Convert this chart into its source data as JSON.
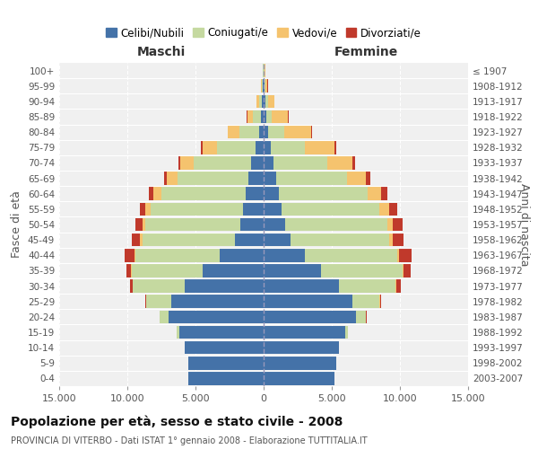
{
  "age_groups": [
    "0-4",
    "5-9",
    "10-14",
    "15-19",
    "20-24",
    "25-29",
    "30-34",
    "35-39",
    "40-44",
    "45-49",
    "50-54",
    "55-59",
    "60-64",
    "65-69",
    "70-74",
    "75-79",
    "80-84",
    "85-89",
    "90-94",
    "95-99",
    "100+"
  ],
  "birth_years": [
    "2003-2007",
    "1998-2002",
    "1993-1997",
    "1988-1992",
    "1983-1987",
    "1978-1982",
    "1973-1977",
    "1968-1972",
    "1963-1967",
    "1958-1962",
    "1953-1957",
    "1948-1952",
    "1943-1947",
    "1938-1942",
    "1933-1937",
    "1928-1932",
    "1923-1927",
    "1918-1922",
    "1913-1917",
    "1908-1912",
    "≤ 1907"
  ],
  "colors": {
    "celibi": "#4472a8",
    "coniugati": "#c5d9a0",
    "vedovi": "#f5c36e",
    "divorziati": "#c0392b"
  },
  "maschi": {
    "celibi": [
      5500,
      5500,
      5800,
      6200,
      7000,
      6800,
      5800,
      4500,
      3200,
      2100,
      1700,
      1500,
      1300,
      1100,
      900,
      600,
      300,
      200,
      150,
      80,
      30
    ],
    "coniugati": [
      0,
      0,
      0,
      200,
      600,
      1800,
      3800,
      5200,
      6200,
      6800,
      7000,
      6800,
      6200,
      5200,
      4200,
      2800,
      1500,
      600,
      200,
      80,
      40
    ],
    "vedovi": [
      0,
      0,
      0,
      0,
      5,
      10,
      30,
      50,
      100,
      150,
      200,
      400,
      600,
      800,
      1000,
      1100,
      800,
      400,
      150,
      50,
      20
    ],
    "divorziati": [
      0,
      0,
      0,
      10,
      30,
      80,
      200,
      300,
      700,
      600,
      500,
      400,
      300,
      200,
      150,
      100,
      50,
      30,
      20,
      10,
      5
    ]
  },
  "femmine": {
    "celibi": [
      5200,
      5300,
      5500,
      6000,
      6800,
      6500,
      5500,
      4200,
      3000,
      2000,
      1600,
      1300,
      1100,
      900,
      700,
      500,
      300,
      200,
      150,
      80,
      30
    ],
    "coniugati": [
      0,
      0,
      0,
      200,
      700,
      2000,
      4200,
      6000,
      6800,
      7200,
      7500,
      7200,
      6500,
      5200,
      4000,
      2500,
      1200,
      400,
      150,
      60,
      30
    ],
    "vedovi": [
      0,
      0,
      0,
      5,
      10,
      20,
      40,
      80,
      150,
      250,
      400,
      700,
      1000,
      1400,
      1800,
      2200,
      2000,
      1200,
      500,
      150,
      60
    ],
    "divorziati": [
      0,
      0,
      0,
      10,
      30,
      100,
      300,
      500,
      900,
      800,
      700,
      600,
      500,
      300,
      200,
      150,
      60,
      30,
      20,
      10,
      5
    ]
  },
  "xlim": 15000,
  "title": "Popolazione per età, sesso e stato civile - 2008",
  "subtitle": "PROVINCIA DI VITERBO - Dati ISTAT 1° gennaio 2008 - Elaborazione TUTTITALIA.IT",
  "xlabel_left": "Maschi",
  "xlabel_right": "Femmine",
  "ylabel_left": "Fasce di età",
  "ylabel_right": "Anni di nascita",
  "legend_labels": [
    "Celibi/Nubili",
    "Coniugati/e",
    "Vedovi/e",
    "Divorziati/e"
  ],
  "xtick_vals": [
    -15000,
    -10000,
    -5000,
    0,
    5000,
    10000,
    15000
  ],
  "xtick_labels": [
    "15.000",
    "10.000",
    "5.000",
    "0",
    "5.000",
    "10.000",
    "15.000"
  ],
  "background_color": "#f0f0f0",
  "grid_color": "#cccccc"
}
